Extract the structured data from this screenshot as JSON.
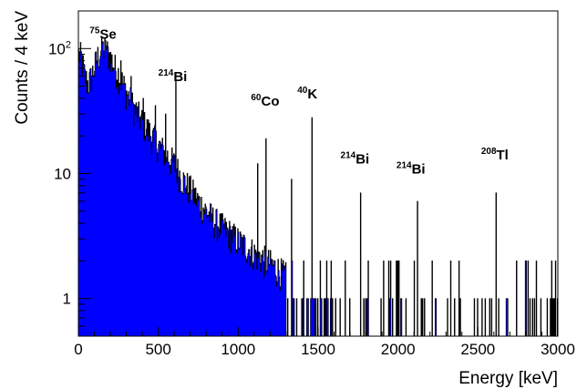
{
  "chart_data": {
    "type": "histogram",
    "xlabel": "Energy [keV]",
    "ylabel": "Counts / 4 keV",
    "xlim": [
      0,
      3000
    ],
    "ylim": [
      0.5,
      200
    ],
    "y_scale": "log",
    "bin_width_kev": 4,
    "fill_color": "#0000ff",
    "line_color": "#000000",
    "x_ticks": [
      {
        "value": 0,
        "label": "0"
      },
      {
        "value": 500,
        "label": "500"
      },
      {
        "value": 1000,
        "label": "1000"
      },
      {
        "value": 1500,
        "label": "1500"
      },
      {
        "value": 2000,
        "label": "2000"
      },
      {
        "value": 2500,
        "label": "2500"
      },
      {
        "value": 3000,
        "label": "3000"
      }
    ],
    "y_ticks": [
      {
        "value": 1,
        "label": "1"
      },
      {
        "value": 10,
        "label": "10"
      },
      {
        "value": 100,
        "base": "10",
        "exp": "2"
      }
    ],
    "continuum": [
      [
        0,
        90
      ],
      [
        20,
        85
      ],
      [
        40,
        60
      ],
      [
        60,
        52
      ],
      [
        80,
        58
      ],
      [
        100,
        70
      ],
      [
        120,
        85
      ],
      [
        140,
        95
      ],
      [
        160,
        100
      ],
      [
        180,
        95
      ],
      [
        200,
        85
      ],
      [
        230,
        70
      ],
      [
        260,
        60
      ],
      [
        300,
        45
      ],
      [
        350,
        33
      ],
      [
        400,
        26
      ],
      [
        450,
        21
      ],
      [
        500,
        17
      ],
      [
        550,
        14
      ],
      [
        600,
        12
      ],
      [
        650,
        9
      ],
      [
        700,
        7.5
      ],
      [
        750,
        6
      ],
      [
        800,
        5
      ],
      [
        850,
        4.2
      ],
      [
        900,
        3.7
      ],
      [
        950,
        3.3
      ],
      [
        1000,
        2.9
      ],
      [
        1050,
        2.6
      ],
      [
        1100,
        2.3
      ],
      [
        1150,
        2.1
      ],
      [
        1200,
        1.9
      ],
      [
        1250,
        1.7
      ],
      [
        1300,
        1.5
      ],
      [
        1350,
        1.3
      ],
      [
        1400,
        1.2
      ],
      [
        1450,
        1.1
      ],
      [
        1500,
        1.0
      ],
      [
        1550,
        0.9
      ],
      [
        1600,
        0.8
      ],
      [
        1800,
        0.7
      ],
      [
        2000,
        0.65
      ],
      [
        2200,
        0.6
      ],
      [
        2400,
        0.55
      ],
      [
        2600,
        0.5
      ],
      [
        3000,
        0.5
      ]
    ],
    "peaks": [
      {
        "x": 150,
        "y": 110
      },
      {
        "x": 175,
        "y": 105
      },
      {
        "x": 265,
        "y": 80
      },
      {
        "x": 330,
        "y": 60
      },
      {
        "x": 405,
        "y": 40
      },
      {
        "x": 480,
        "y": 35
      },
      {
        "x": 545,
        "y": 30
      },
      {
        "x": 610,
        "y": 55
      },
      {
        "x": 1120,
        "y": 12
      },
      {
        "x": 1173,
        "y": 19
      },
      {
        "x": 1332,
        "y": 9
      },
      {
        "x": 1460,
        "y": 28
      },
      {
        "x": 1765,
        "y": 7
      },
      {
        "x": 2120,
        "y": 6
      },
      {
        "x": 2615,
        "y": 7
      }
    ],
    "annotations": [
      {
        "mass": "75",
        "element": "Se",
        "x": 70,
        "y": 120
      },
      {
        "mass": "214",
        "element": "Bi",
        "x": 500,
        "y": 55
      },
      {
        "mass": "60",
        "element": "Co",
        "x": 1080,
        "y": 35
      },
      {
        "mass": "40",
        "element": "K",
        "x": 1370,
        "y": 40
      },
      {
        "mass": "214",
        "element": "Bi",
        "x": 1640,
        "y": 12
      },
      {
        "mass": "214",
        "element": "Bi",
        "x": 1990,
        "y": 10
      },
      {
        "mass": "208",
        "element": "Tl",
        "x": 2520,
        "y": 13
      }
    ]
  }
}
